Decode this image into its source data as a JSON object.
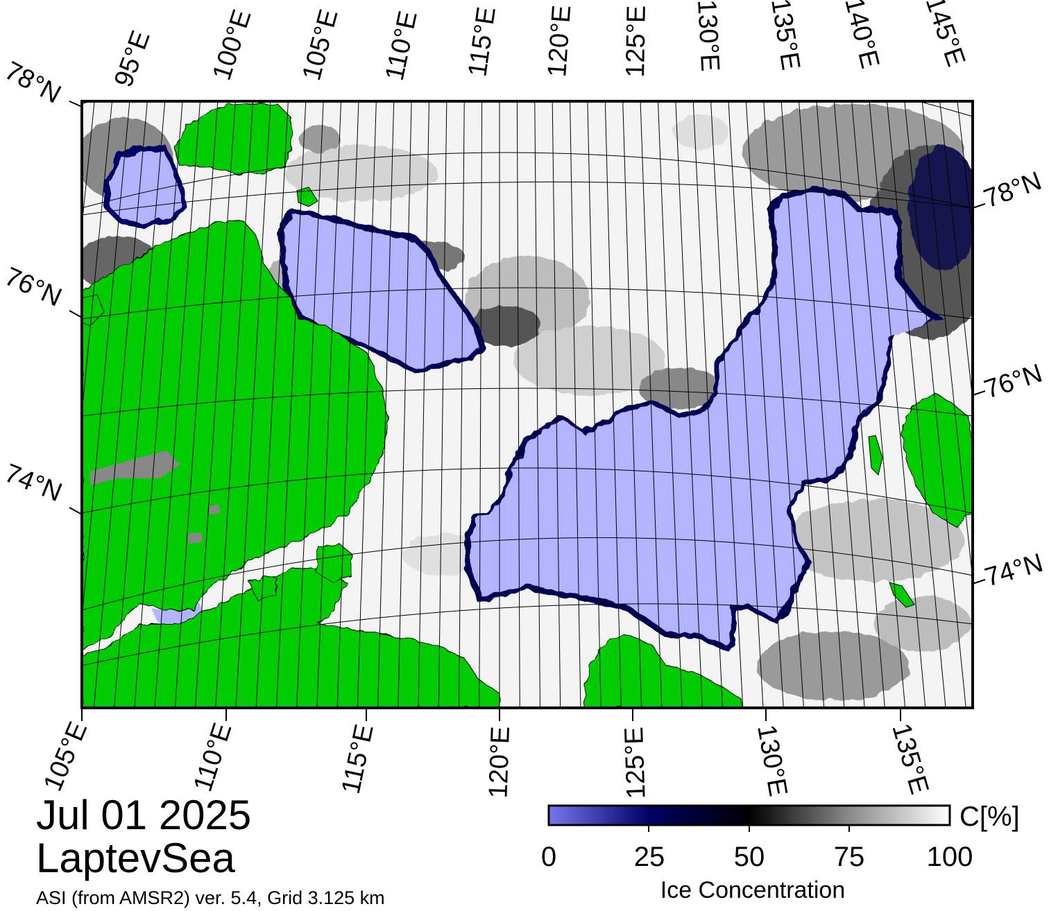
{
  "map": {
    "date": "Jul 01 2025",
    "region": "LaptevSea",
    "source": "ASI (from AMSR2) ver. 5.4,  Grid 3.125 km",
    "colors": {
      "land": "#00cc00",
      "ice_shelf_grey": "#888888",
      "open_water": "#b3b3ff",
      "low_conc_edge": "#5555dd",
      "mid_conc": "#000044",
      "full_ice": "#ffffff",
      "frame": "#000000"
    },
    "top_lon_labels": [
      "95°E",
      "100°E",
      "105°E",
      "110°E",
      "115°E",
      "120°E",
      "125°E",
      "130°E",
      "135°E",
      "140°E",
      "145°E"
    ],
    "bottom_lon_labels": [
      "105°E",
      "110°E",
      "115°E",
      "120°E",
      "125°E",
      "130°E",
      "135°E"
    ],
    "left_lat_labels": [
      "78°N",
      "76°N",
      "74°N"
    ],
    "right_lat_labels": [
      "78°N",
      "76°N",
      "74°N"
    ]
  },
  "colorbar": {
    "title": "Ice Concentration",
    "unit": "C[%]",
    "ticks": [
      "0",
      "25",
      "50",
      "75",
      "100"
    ],
    "stops": [
      "#7777ee",
      "#000055",
      "#000000",
      "#888888",
      "#ffffff"
    ]
  }
}
